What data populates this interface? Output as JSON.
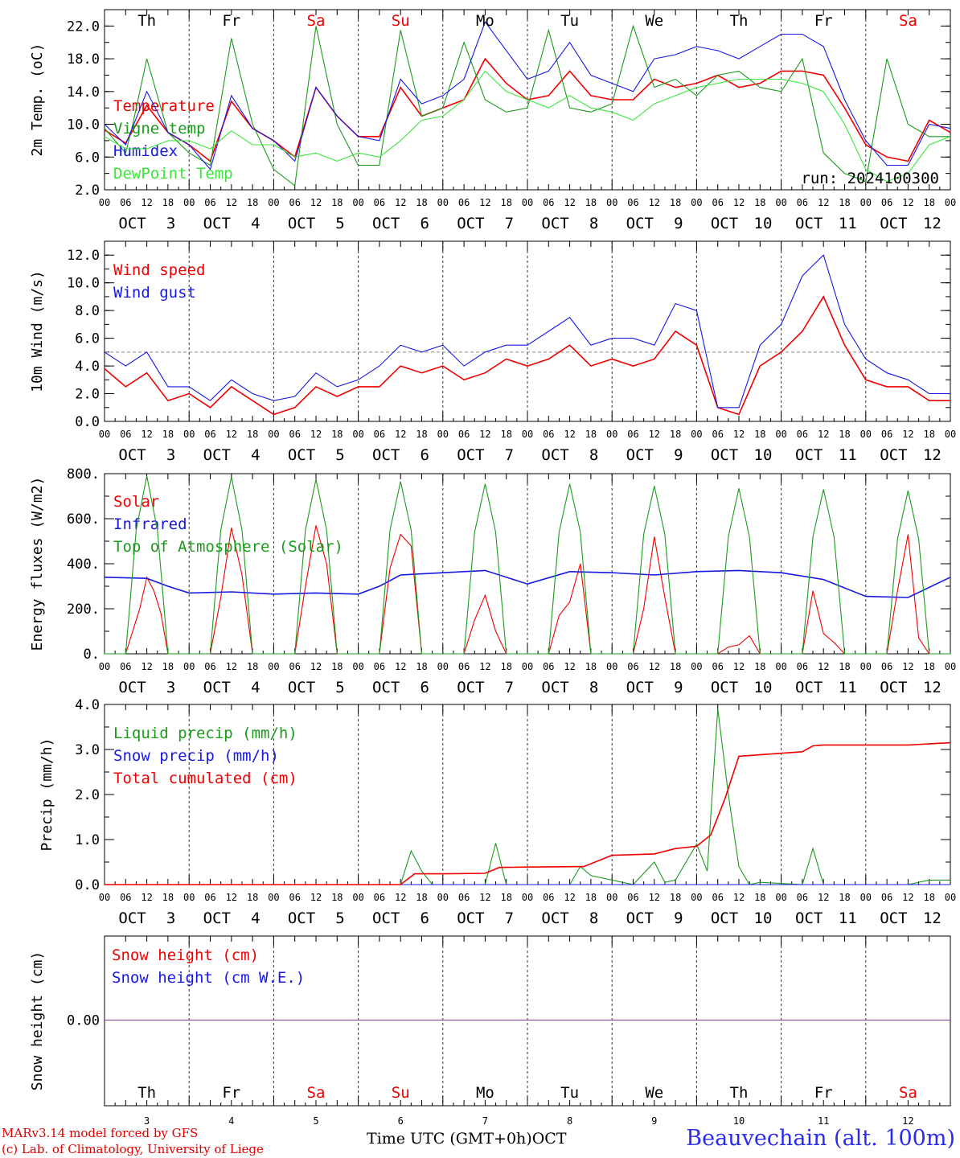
{
  "run_label": "run: 2024100300",
  "footer": {
    "model": "MARv3.14 model forced by GFS",
    "copyright": "(c) Lab. of Climatology, University of Liege",
    "time_axis": "Time UTC (GMT+0h)",
    "month": "OCT",
    "station": "Beauvechain (alt. 100m)"
  },
  "days": [
    {
      "dow": "Th",
      "date": "3",
      "weekend": false
    },
    {
      "dow": "Fr",
      "date": "4",
      "weekend": false
    },
    {
      "dow": "Sa",
      "date": "5",
      "weekend": true
    },
    {
      "dow": "Su",
      "date": "6",
      "weekend": true
    },
    {
      "dow": "Mo",
      "date": "7",
      "weekend": false
    },
    {
      "dow": "Tu",
      "date": "8",
      "weekend": false
    },
    {
      "dow": "We",
      "date": "9",
      "weekend": false
    },
    {
      "dow": "Th",
      "date": "10",
      "weekend": false
    },
    {
      "dow": "Fr",
      "date": "11",
      "weekend": false
    },
    {
      "dow": "Sa",
      "date": "12",
      "weekend": true
    }
  ],
  "hour_ticks": [
    "00",
    "06",
    "12",
    "18"
  ],
  "colors": {
    "red": "#f00000",
    "green": "#1c9a1c",
    "blue": "#1818e6",
    "lightgreen": "#3ce63c",
    "weekend": "#f00000",
    "snow_line": "#8a3aa0"
  },
  "chart_data": [
    {
      "type": "line",
      "ylabel": "2m Temp. (oC)",
      "ylim": [
        2,
        24
      ],
      "yticks": [
        "2.0",
        "6.0",
        "10.0",
        "14.0",
        "18.0",
        "22.0"
      ],
      "x_unit": "hours since OCT 3 00 UTC",
      "series": [
        {
          "name": "Temperature",
          "color": "red",
          "x": [
            0,
            6,
            12,
            18,
            24,
            30,
            36,
            42,
            48,
            54,
            60,
            66,
            72,
            78,
            84,
            90,
            96,
            102,
            108,
            114,
            120,
            126,
            132,
            138,
            144,
            150,
            156,
            162,
            168,
            174,
            180,
            186,
            192,
            198,
            204,
            210,
            216,
            222,
            228,
            234,
            240
          ],
          "y": [
            9.3,
            7.7,
            12.3,
            9.0,
            7.5,
            5.5,
            12.8,
            9.5,
            8.0,
            6.0,
            14.5,
            11.0,
            8.5,
            8.5,
            14.5,
            11.0,
            12.0,
            13.0,
            18.0,
            15.0,
            13.0,
            13.5,
            16.5,
            13.5,
            13.0,
            13.0,
            15.5,
            14.5,
            15.0,
            16.0,
            14.5,
            15.0,
            16.5,
            16.5,
            16.0,
            12.0,
            7.5,
            6.0,
            5.5,
            10.5,
            9.0
          ]
        },
        {
          "name": "Vigne temp",
          "color": "green",
          "x": [
            0,
            6,
            8,
            12,
            18,
            24,
            30,
            36,
            42,
            48,
            54,
            60,
            66,
            72,
            78,
            84,
            90,
            96,
            102,
            108,
            114,
            120,
            126,
            132,
            138,
            144,
            150,
            156,
            162,
            168,
            174,
            180,
            186,
            192,
            198,
            204,
            210,
            216,
            222,
            228,
            234,
            240
          ],
          "y": [
            9.5,
            6.5,
            10.0,
            18.0,
            9.0,
            6.5,
            5.0,
            20.5,
            10.0,
            4.5,
            2.5,
            22.0,
            10.0,
            5.0,
            5.0,
            21.5,
            11.0,
            12.0,
            20.0,
            13.0,
            11.5,
            12.0,
            21.5,
            12.0,
            11.5,
            12.5,
            22.0,
            14.5,
            15.5,
            13.5,
            16.0,
            16.5,
            14.5,
            14.0,
            18.0,
            6.5,
            4.0,
            3.0,
            18.0,
            10.0,
            8.5,
            8.5
          ]
        },
        {
          "name": "Humidex",
          "color": "blue",
          "x": [
            0,
            6,
            12,
            18,
            24,
            30,
            36,
            42,
            48,
            54,
            60,
            66,
            72,
            78,
            84,
            90,
            96,
            102,
            108,
            114,
            120,
            126,
            132,
            138,
            144,
            150,
            156,
            162,
            168,
            174,
            180,
            186,
            192,
            198,
            204,
            210,
            216,
            222,
            228,
            234,
            240
          ],
          "y": [
            10.0,
            7.5,
            14.0,
            9.0,
            7.5,
            4.5,
            13.5,
            9.5,
            8.0,
            5.5,
            14.5,
            11.0,
            8.5,
            8.0,
            15.5,
            12.5,
            13.5,
            15.5,
            22.5,
            19.0,
            15.5,
            16.5,
            20.0,
            16.0,
            15.0,
            14.0,
            18.0,
            18.5,
            19.5,
            19.0,
            18.0,
            19.5,
            21.0,
            21.0,
            19.5,
            13.0,
            8.0,
            5.0,
            5.0,
            10.0,
            9.5
          ]
        },
        {
          "name": "DewPoint Temp",
          "color": "lightgreen",
          "x": [
            0,
            6,
            12,
            18,
            24,
            30,
            36,
            42,
            48,
            54,
            60,
            66,
            72,
            78,
            84,
            90,
            96,
            102,
            108,
            114,
            120,
            126,
            132,
            138,
            144,
            150,
            156,
            162,
            168,
            174,
            180,
            186,
            192,
            198,
            204,
            210,
            216,
            222,
            228,
            234,
            240
          ],
          "y": [
            8.5,
            7.0,
            7.0,
            8.0,
            8.0,
            7.0,
            9.2,
            7.5,
            7.5,
            6.0,
            6.5,
            5.5,
            6.5,
            6.0,
            8.0,
            10.5,
            11.0,
            13.0,
            16.5,
            14.0,
            13.0,
            12.0,
            13.5,
            12.0,
            11.5,
            10.5,
            12.5,
            13.5,
            14.5,
            15.0,
            15.5,
            15.5,
            15.5,
            15.0,
            14.0,
            10.0,
            4.5,
            3.0,
            4.0,
            7.5,
            8.5
          ]
        }
      ]
    },
    {
      "type": "line",
      "ylabel": "10m Wind (m/s)",
      "ylim": [
        0,
        13
      ],
      "yticks": [
        "0.0",
        "2.0",
        "4.0",
        "6.0",
        "8.0",
        "10.0",
        "12.0"
      ],
      "reference_line": 5.0,
      "x_unit": "hours since OCT 3 00 UTC",
      "series": [
        {
          "name": "Wind speed",
          "color": "red",
          "x": [
            0,
            6,
            12,
            18,
            24,
            30,
            36,
            42,
            48,
            54,
            60,
            66,
            72,
            78,
            84,
            90,
            96,
            102,
            108,
            114,
            120,
            126,
            132,
            138,
            144,
            150,
            156,
            162,
            168,
            174,
            180,
            186,
            192,
            198,
            204,
            210,
            216,
            222,
            228,
            234,
            240
          ],
          "y": [
            3.8,
            2.5,
            3.5,
            1.5,
            2.0,
            1.0,
            2.5,
            1.5,
            0.5,
            1.0,
            2.5,
            1.8,
            2.5,
            2.5,
            4.0,
            3.5,
            4.0,
            3.0,
            3.5,
            4.5,
            4.0,
            4.5,
            5.5,
            4.0,
            4.5,
            4.0,
            4.5,
            6.5,
            5.5,
            1.0,
            0.5,
            4.0,
            5.0,
            6.5,
            9.0,
            5.5,
            3.0,
            2.5,
            2.5,
            1.5,
            1.5
          ]
        },
        {
          "name": "Wind gust",
          "color": "blue",
          "x": [
            0,
            6,
            12,
            18,
            24,
            30,
            36,
            42,
            48,
            54,
            60,
            66,
            72,
            78,
            84,
            90,
            96,
            102,
            108,
            114,
            120,
            126,
            132,
            138,
            144,
            150,
            156,
            162,
            168,
            174,
            180,
            186,
            192,
            198,
            204,
            210,
            216,
            222,
            228,
            234,
            240
          ],
          "y": [
            5.0,
            4.0,
            5.0,
            2.5,
            2.5,
            1.5,
            3.0,
            2.0,
            1.5,
            1.8,
            3.5,
            2.5,
            3.0,
            4.0,
            5.5,
            5.0,
            5.5,
            4.0,
            5.0,
            5.5,
            5.5,
            6.5,
            7.5,
            5.5,
            6.0,
            6.0,
            5.5,
            8.5,
            8.0,
            1.0,
            1.0,
            5.5,
            7.0,
            10.5,
            12.0,
            7.0,
            4.5,
            3.5,
            3.0,
            2.0,
            2.0
          ]
        }
      ]
    },
    {
      "type": "line",
      "ylabel": "Energy fluxes (W/m2)",
      "ylim": [
        0,
        800
      ],
      "yticks": [
        "0.",
        "200.",
        "400.",
        "600.",
        "800."
      ],
      "x_unit": "hours since OCT 3 00 UTC",
      "series": [
        {
          "name": "Solar",
          "color": "red",
          "x": [
            0,
            6,
            10,
            12,
            14,
            16,
            18,
            24,
            30,
            33,
            36,
            39,
            42,
            48,
            54,
            57,
            60,
            63,
            66,
            72,
            78,
            81,
            84,
            87,
            90,
            96,
            102,
            105,
            108,
            111,
            114,
            120,
            126,
            129,
            132,
            135,
            138,
            144,
            150,
            153,
            156,
            159,
            162,
            168,
            174,
            177,
            180,
            183,
            186,
            192,
            198,
            201,
            204,
            207,
            210,
            216,
            222,
            225,
            228,
            231,
            234,
            240
          ],
          "y": [
            0,
            0,
            200,
            340,
            280,
            180,
            0,
            0,
            0,
            250,
            560,
            350,
            0,
            0,
            0,
            300,
            570,
            400,
            0,
            0,
            0,
            380,
            530,
            480,
            0,
            0,
            0,
            150,
            260,
            100,
            0,
            0,
            0,
            170,
            230,
            400,
            0,
            0,
            0,
            200,
            520,
            250,
            0,
            0,
            0,
            30,
            40,
            80,
            0,
            0,
            0,
            280,
            90,
            50,
            0,
            0,
            0,
            280,
            530,
            70,
            0,
            0
          ]
        },
        {
          "name": "Infrared",
          "color": "blue",
          "x": [
            0,
            12,
            18,
            24,
            36,
            48,
            60,
            72,
            78,
            84,
            96,
            108,
            120,
            132,
            144,
            156,
            168,
            180,
            192,
            204,
            216,
            228,
            240
          ],
          "y": [
            340,
            335,
            300,
            270,
            275,
            265,
            270,
            265,
            300,
            350,
            360,
            370,
            310,
            365,
            360,
            350,
            365,
            370,
            360,
            330,
            255,
            250,
            340
          ]
        },
        {
          "name": "Top of Atmosphere (Solar)",
          "color": "green",
          "x": [
            0,
            6,
            9,
            12,
            15,
            18,
            24,
            30,
            33,
            36,
            39,
            42,
            48,
            54,
            57,
            60,
            63,
            66,
            72,
            78,
            81,
            84,
            87,
            90,
            96,
            102,
            105,
            108,
            111,
            114,
            120,
            126,
            129,
            132,
            135,
            138,
            144,
            150,
            153,
            156,
            159,
            162,
            168,
            174,
            177,
            180,
            183,
            186,
            192,
            198,
            201,
            204,
            207,
            210,
            216,
            222,
            225,
            228,
            231,
            234,
            240
          ],
          "y": [
            0,
            0,
            550,
            790,
            550,
            0,
            0,
            0,
            550,
            785,
            550,
            0,
            0,
            0,
            550,
            775,
            550,
            0,
            0,
            0,
            550,
            765,
            550,
            0,
            0,
            0,
            540,
            755,
            540,
            0,
            0,
            0,
            540,
            755,
            540,
            0,
            0,
            0,
            530,
            745,
            530,
            0,
            0,
            0,
            520,
            735,
            520,
            0,
            0,
            0,
            520,
            730,
            520,
            0,
            0,
            0,
            510,
            725,
            510,
            0,
            0
          ]
        }
      ]
    },
    {
      "type": "line",
      "ylabel": "Precip (mm/h)",
      "ylim": [
        0,
        4
      ],
      "yticks": [
        "0.0",
        "1.0",
        "2.0",
        "3.0",
        "4.0"
      ],
      "x_unit": "hours since OCT 3 00 UTC",
      "series": [
        {
          "name": "Liquid precip (mm/h)",
          "color": "green",
          "x": [
            0,
            84,
            87,
            90,
            93,
            108,
            111,
            114,
            132,
            135,
            138,
            150,
            156,
            159,
            162,
            168,
            171,
            174,
            177,
            180,
            183,
            186,
            198,
            201,
            204,
            228,
            234,
            240
          ],
          "y": [
            0,
            0,
            0.75,
            0.3,
            0,
            0,
            0.92,
            0,
            0,
            0.4,
            0.2,
            0,
            0.5,
            0.05,
            0.1,
            0.9,
            0.3,
            3.9,
            2.0,
            0.4,
            0,
            0.05,
            0,
            0.8,
            0,
            0,
            0.1,
            0.1
          ]
        },
        {
          "name": "Snow precip (mm/h)",
          "color": "blue",
          "x": [
            0,
            240
          ],
          "y": [
            0,
            0
          ]
        },
        {
          "name": "Total cumulated (cm)",
          "color": "red",
          "x": [
            0,
            84,
            88,
            96,
            108,
            112,
            120,
            136,
            144,
            156,
            162,
            168,
            172,
            176,
            180,
            198,
            201,
            204,
            216,
            228,
            240
          ],
          "y": [
            0,
            0,
            0.24,
            0.24,
            0.25,
            0.38,
            0.39,
            0.4,
            0.65,
            0.68,
            0.8,
            0.85,
            1.1,
            1.9,
            2.85,
            2.95,
            3.08,
            3.1,
            3.1,
            3.1,
            3.15
          ]
        }
      ]
    },
    {
      "type": "line",
      "ylabel": "Snow height (cm)",
      "yticks": [
        "0.00"
      ],
      "x_unit": "hours since OCT 3 00 UTC",
      "series": [
        {
          "name": "Snow height (cm)",
          "color": "red",
          "x": [
            0,
            240
          ],
          "y": [
            0,
            0
          ]
        },
        {
          "name": "Snow height (cm W.E.)",
          "color": "blue",
          "x": [
            0,
            240
          ],
          "y": [
            0,
            0
          ]
        }
      ]
    }
  ]
}
